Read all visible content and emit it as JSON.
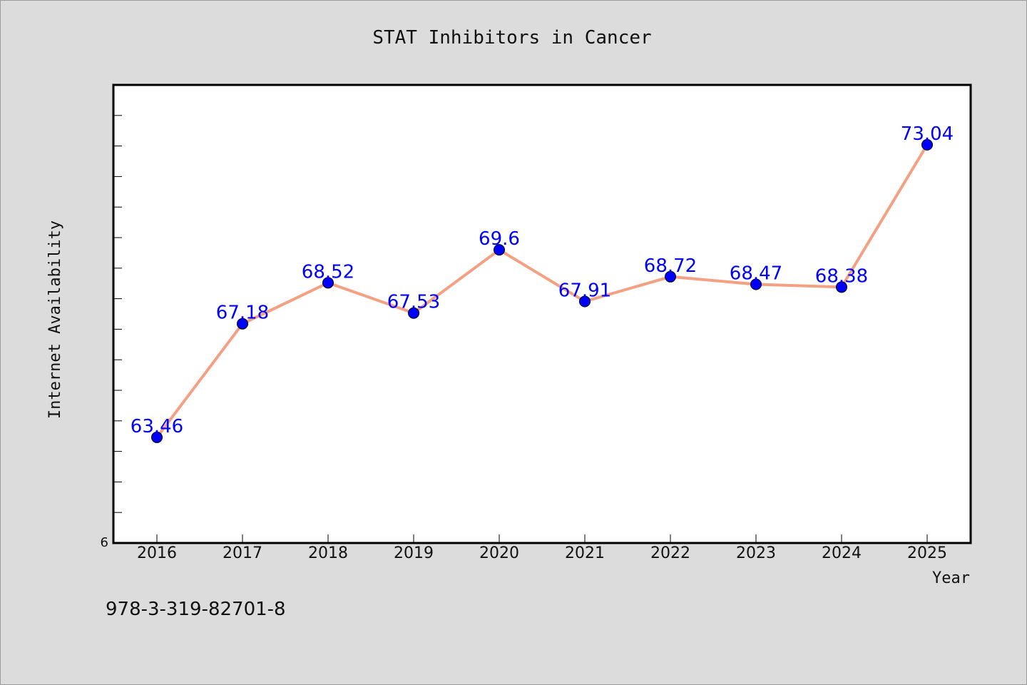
{
  "colors": {
    "background": "#dcdcdc",
    "plot_background": "#ffffff",
    "line": "#f4a083",
    "marker": "#0000ff",
    "data_label": "#0000ff"
  },
  "footnote": "978-3-319-82701-8",
  "chart_data": {
    "type": "line",
    "title": "STAT Inhibitors in Cancer",
    "xlabel": "Year",
    "ylabel": "Internet Availability",
    "categories": [
      "2016",
      "2017",
      "2018",
      "2019",
      "2020",
      "2021",
      "2022",
      "2023",
      "2024",
      "2025"
    ],
    "series": [
      {
        "values": [
          63.46,
          67.18,
          68.52,
          67.53,
          69.6,
          67.91,
          68.72,
          68.47,
          68.38,
          73.04
        ],
        "labels": [
          "63.46",
          "67.18",
          "68.52",
          "67.53",
          "69.6",
          "67.91",
          "68.72",
          "68.47",
          "68.38",
          "73.04"
        ]
      }
    ],
    "ylim": [
      60,
      75
    ],
    "y_tick_label": "6",
    "grid": false,
    "legend": "none"
  }
}
